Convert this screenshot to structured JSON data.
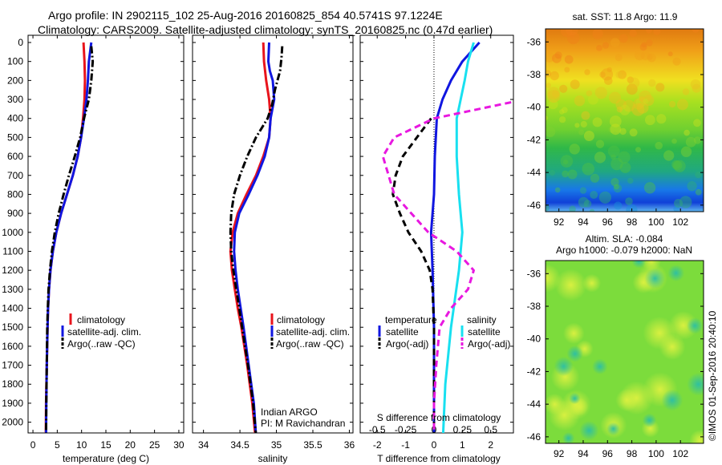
{
  "header": {
    "line1": "Argo profile: IN 2902115_102 25-Aug-2016 20160825_854 40.5741S 97.1224E",
    "line2": "Climatology: CARS2009. Satellite-adjusted climatology: synTS_20160825.nc (0.47d earlier)"
  },
  "y_ticks": [
    "0",
    "100",
    "200",
    "300",
    "400",
    "500",
    "600",
    "700",
    "800",
    "900",
    "1000",
    "1100",
    "1200",
    "1300",
    "1400",
    "1500",
    "1600",
    "1700",
    "1800",
    "1900",
    "2000"
  ],
  "colors": {
    "climatology": "#e8141c",
    "satellite": "#1016e0",
    "argo": "#000000",
    "salinity_sat": "#18e0f0",
    "salinity_argo": "#e818e0"
  },
  "chart_data": [
    {
      "type": "line",
      "xlabel": "temperature (deg C)",
      "ylabel": "",
      "xlim": [
        -1,
        31
      ],
      "ylim": [
        2070,
        0
      ],
      "x_ticks": [
        "0",
        "5",
        "10",
        "15",
        "20",
        "25",
        "30"
      ],
      "legend": [
        "climatology",
        "satellite-adj. clim.",
        "Argo(..raw -QC)"
      ],
      "series": [
        {
          "name": "climatology",
          "depth": [
            0,
            100,
            200,
            300,
            400,
            500,
            600,
            700,
            800,
            900,
            1000,
            1100,
            1200,
            1300,
            1400,
            1500,
            1700,
            1900,
            2070
          ],
          "values": [
            10.4,
            10.6,
            10.7,
            10.6,
            10.3,
            9.9,
            9.2,
            8.2,
            7.0,
            5.8,
            4.8,
            4.1,
            3.6,
            3.3,
            3.1,
            3.0,
            2.85,
            2.7,
            2.65
          ]
        },
        {
          "name": "satellite-adj. clim.",
          "depth": [
            0,
            100,
            200,
            300,
            400,
            500,
            600,
            700,
            800,
            900,
            1000,
            1100,
            1200,
            1300,
            1400,
            1500,
            1700,
            1900,
            2070
          ],
          "values": [
            12.0,
            11.5,
            11.3,
            11.0,
            10.5,
            9.9,
            9.2,
            8.2,
            7.0,
            5.8,
            4.8,
            4.1,
            3.6,
            3.3,
            3.1,
            3.0,
            2.85,
            2.75,
            2.7
          ]
        },
        {
          "name": "Argo(..raw -QC)",
          "depth": [
            20,
            100,
            200,
            300,
            400,
            500,
            600,
            700,
            800,
            900,
            1000,
            1100,
            1200,
            1300,
            1400,
            1500,
            1700,
            1900,
            2070
          ],
          "values": [
            12.0,
            12.3,
            12.0,
            11.5,
            10.5,
            9.7,
            8.6,
            7.4,
            6.3,
            5.3,
            4.5,
            3.9,
            3.5,
            3.2,
            3.05,
            2.95,
            2.85,
            2.75,
            2.7
          ]
        }
      ]
    },
    {
      "type": "line",
      "xlabel": "salinity",
      "ylabel": "",
      "xlim": [
        33.85,
        36.05
      ],
      "ylim": [
        2070,
        0
      ],
      "x_ticks": [
        "34",
        "34.5",
        "35",
        "35.5",
        "36"
      ],
      "legend": [
        "climatology",
        "satellite-adj. clim.",
        "Argo(..raw -QC)"
      ],
      "annotation": [
        "Indian ARGO",
        "PI: M Ravichandran"
      ],
      "series": [
        {
          "name": "climatology",
          "depth": [
            0,
            100,
            200,
            300,
            400,
            500,
            600,
            700,
            800,
            900,
            1000,
            1100,
            1200,
            1300,
            1400,
            1500,
            1700,
            1900,
            2070
          ],
          "values": [
            34.82,
            34.83,
            34.86,
            34.9,
            34.92,
            34.9,
            34.82,
            34.72,
            34.59,
            34.47,
            34.4,
            34.37,
            34.39,
            34.43,
            34.47,
            34.52,
            34.6,
            34.67,
            34.71
          ]
        },
        {
          "name": "satellite-adj. clim.",
          "depth": [
            0,
            100,
            150,
            200,
            300,
            400,
            500,
            600,
            700,
            800,
            900,
            1000,
            1100,
            1200,
            1300,
            1400,
            1500,
            1700,
            1900,
            2070
          ],
          "values": [
            34.9,
            34.89,
            34.91,
            34.95,
            34.97,
            34.92,
            34.9,
            34.84,
            34.74,
            34.62,
            34.49,
            34.43,
            34.42,
            34.44,
            34.47,
            34.51,
            34.55,
            34.62,
            34.69,
            34.72
          ]
        },
        {
          "name": "Argo(..raw -QC)",
          "depth": [
            20,
            80,
            150,
            250,
            330,
            400,
            500,
            600,
            700,
            800,
            900,
            1000,
            1100,
            1200,
            1300,
            1400,
            1500,
            1700,
            1900,
            2070
          ],
          "values": [
            35.08,
            35.07,
            35.05,
            34.98,
            34.94,
            34.88,
            34.72,
            34.6,
            34.5,
            34.42,
            34.38,
            34.37,
            34.38,
            34.41,
            34.45,
            34.49,
            34.53,
            34.61,
            34.68,
            34.72
          ]
        }
      ]
    },
    {
      "type": "line",
      "xlabel": "T difference from climatology",
      "x2label": "S difference from climatology",
      "ylabel": "",
      "xlim": [
        -2.6,
        2.8
      ],
      "x_ticks": [
        "-2",
        "-1",
        "0",
        "1",
        "2"
      ],
      "x2_ticks": [
        "-0.5",
        "-0.25",
        "0",
        "0.25",
        "0.5"
      ],
      "ylim": [
        2070,
        0
      ],
      "legend_groups": [
        "temperature",
        "salinity"
      ],
      "legend": [
        "satellite",
        "Argo(-adj)",
        "satellite",
        "Argo(-adj)"
      ],
      "series": [
        {
          "name": "temperature satellite",
          "depth": [
            0,
            100,
            200,
            300,
            400,
            600,
            800,
            1000,
            1200,
            1500,
            1800,
            2070
          ],
          "values": [
            1.6,
            1.0,
            0.6,
            0.3,
            0.1,
            0.03,
            0.0,
            -0.1,
            -0.05,
            0.0,
            0.0,
            0.0
          ]
        },
        {
          "name": "temperature Argo(-adj)",
          "depth": [
            400,
            500,
            600,
            700,
            800,
            900,
            1000,
            1100,
            1200,
            1300,
            1500,
            1800,
            2070
          ],
          "values": [
            -0.1,
            -0.6,
            -1.1,
            -1.35,
            -1.45,
            -1.2,
            -0.9,
            -0.45,
            -0.15,
            -0.05,
            0.0,
            0.0,
            0.0
          ]
        },
        {
          "name": "salinity satellite",
          "depth": [
            0,
            100,
            200,
            400,
            600,
            800,
            1000,
            1200,
            1500,
            1800,
            2070
          ],
          "values": [
            0.35,
            0.3,
            0.27,
            0.2,
            0.2,
            0.22,
            0.25,
            0.22,
            0.15,
            0.1,
            0.08
          ]
        },
        {
          "name": "salinity Argo(-adj)",
          "depth": [
            20,
            100,
            200,
            300,
            400,
            500,
            600,
            700,
            800,
            900,
            1000,
            1100,
            1200,
            1300,
            1400,
            1500,
            1700,
            1900,
            2070
          ],
          "values": [
            1.55,
            1.4,
            1.1,
            0.8,
            0.0,
            -0.35,
            -0.45,
            -0.4,
            -0.35,
            -0.2,
            -0.05,
            0.2,
            0.35,
            0.3,
            0.15,
            0.05,
            0.02,
            0.0,
            0.0
          ]
        }
      ]
    }
  ],
  "sst_map": {
    "title": "sat. SST: 11.8  Argo: 11.9",
    "lat_ticks": [
      "-36",
      "-38",
      "-40",
      "-42",
      "-44",
      "-46"
    ],
    "lon_ticks": [
      "92",
      "94",
      "96",
      "98",
      "100",
      "102"
    ]
  },
  "sla_map": {
    "title_line1": "Altim. SLA: -0.084",
    "title_line2": "Argo h1000: -0.079 h2000: NaN",
    "lat_ticks": [
      "-36",
      "-38",
      "-40",
      "-42",
      "-44",
      "-46"
    ],
    "lon_ticks": [
      "92",
      "94",
      "96",
      "98",
      "100",
      "102"
    ]
  },
  "credit": "©IMOS 01-Sep-2016 20:40:10"
}
